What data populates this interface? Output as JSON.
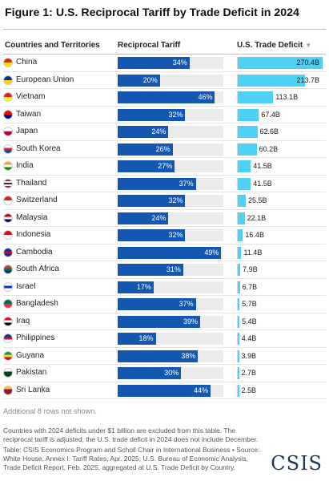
{
  "title": "Figure 1: U.S. Reciprocal Tariff by Trade Deficit in 2024",
  "columns": {
    "country": "Countries and Territories",
    "tariff": "Reciprocal Tariff",
    "deficit": "U.S. Trade Deficit",
    "sort_icon": "sort-down-icon"
  },
  "colors": {
    "tariff_bar": "#1357b0",
    "tariff_track": "#ebebeb",
    "deficit_bar": "#4fd0f5"
  },
  "chart_data": {
    "type": "table",
    "title": "Figure 1: U.S. Reciprocal Tariff by Trade Deficit in 2024",
    "columns": [
      "Countries and Territories",
      "Reciprocal Tariff",
      "U.S. Trade Deficit"
    ],
    "tariff_max_percent": 100,
    "rows": [
      {
        "country": "China",
        "tariff": 34,
        "tariff_label": "34%",
        "deficit": 270.4,
        "deficit_label": "270.4B",
        "flag_colors": [
          "#de2910",
          "#ffde00"
        ]
      },
      {
        "country": "European Union",
        "tariff": 20,
        "tariff_label": "20%",
        "deficit": 213.7,
        "deficit_label": "213.7B",
        "flag_colors": [
          "#003399",
          "#ffcc00"
        ]
      },
      {
        "country": "Vietnam",
        "tariff": 46,
        "tariff_label": "46%",
        "deficit": 113.1,
        "deficit_label": "113.1B",
        "flag_colors": [
          "#da251d",
          "#ffff00"
        ]
      },
      {
        "country": "Taiwan",
        "tariff": 32,
        "tariff_label": "32%",
        "deficit": 67.4,
        "deficit_label": "67.4B",
        "flag_colors": [
          "#fe0000",
          "#000095"
        ]
      },
      {
        "country": "Japan",
        "tariff": 24,
        "tariff_label": "24%",
        "deficit": 62.6,
        "deficit_label": "62.6B",
        "flag_colors": [
          "#ffffff",
          "#bc002d"
        ]
      },
      {
        "country": "South Korea",
        "tariff": 26,
        "tariff_label": "26%",
        "deficit": 60.2,
        "deficit_label": "60.2B",
        "flag_colors": [
          "#ffffff",
          "#cd2e3a",
          "#0047a0"
        ]
      },
      {
        "country": "India",
        "tariff": 27,
        "tariff_label": "27%",
        "deficit": 41.5,
        "deficit_label": "41.5B",
        "flag_colors": [
          "#ff9933",
          "#ffffff",
          "#138808"
        ]
      },
      {
        "country": "Thailand",
        "tariff": 37,
        "tariff_label": "37%",
        "deficit": 41.5,
        "deficit_label": "41.5B",
        "flag_colors": [
          "#a51931",
          "#f4f5f8",
          "#2d2a4a",
          "#f4f5f8",
          "#a51931"
        ]
      },
      {
        "country": "Switzerland",
        "tariff": 32,
        "tariff_label": "32%",
        "deficit": 25.5,
        "deficit_label": "25.5B",
        "flag_colors": [
          "#d52b1e",
          "#ffffff"
        ]
      },
      {
        "country": "Malaysia",
        "tariff": 24,
        "tariff_label": "24%",
        "deficit": 22.1,
        "deficit_label": "22.1B",
        "flag_colors": [
          "#cc0001",
          "#ffffff",
          "#010066"
        ]
      },
      {
        "country": "Indonesia",
        "tariff": 32,
        "tariff_label": "32%",
        "deficit": 16.4,
        "deficit_label": "16.4B",
        "flag_colors": [
          "#ce1126",
          "#ffffff"
        ]
      },
      {
        "country": "Cambodia",
        "tariff": 49,
        "tariff_label": "49%",
        "deficit": 11.4,
        "deficit_label": "11.4B",
        "flag_colors": [
          "#032ea1",
          "#e00025",
          "#032ea1"
        ]
      },
      {
        "country": "South Africa",
        "tariff": 31,
        "tariff_label": "31%",
        "deficit": 7.9,
        "deficit_label": "7.9B",
        "flag_colors": [
          "#de3831",
          "#007a4d",
          "#002395"
        ]
      },
      {
        "country": "Israel",
        "tariff": 17,
        "tariff_label": "17%",
        "deficit": 6.7,
        "deficit_label": "6.7B",
        "flag_colors": [
          "#ffffff",
          "#0038b8",
          "#ffffff"
        ]
      },
      {
        "country": "Bangladesh",
        "tariff": 37,
        "tariff_label": "37%",
        "deficit": 5.7,
        "deficit_label": "5.7B",
        "flag_colors": [
          "#006a4e",
          "#f42a41"
        ]
      },
      {
        "country": "Iraq",
        "tariff": 39,
        "tariff_label": "39%",
        "deficit": 5.4,
        "deficit_label": "5.4B",
        "flag_colors": [
          "#ce1126",
          "#ffffff",
          "#000000"
        ]
      },
      {
        "country": "Philippines",
        "tariff": 18,
        "tariff_label": "18%",
        "deficit": 4.4,
        "deficit_label": "4.4B",
        "flag_colors": [
          "#0038a8",
          "#ce1126",
          "#ffffff"
        ]
      },
      {
        "country": "Guyana",
        "tariff": 38,
        "tariff_label": "38%",
        "deficit": 3.9,
        "deficit_label": "3.9B",
        "flag_colors": [
          "#009e49",
          "#fcd116",
          "#ce1126"
        ]
      },
      {
        "country": "Pakistan",
        "tariff": 30,
        "tariff_label": "30%",
        "deficit": 2.7,
        "deficit_label": "2.7B",
        "flag_colors": [
          "#ffffff",
          "#01411c",
          "#01411c"
        ]
      },
      {
        "country": "Sri Lanka",
        "tariff": 44,
        "tariff_label": "44%",
        "deficit": 2.5,
        "deficit_label": "2.5B",
        "flag_colors": [
          "#ffbe29",
          "#8d153a",
          "#8d153a"
        ]
      }
    ]
  },
  "notes": {
    "hidden_rows": "Additional 8 rows not shown.",
    "footnote": "Countries with 2024 deficits under $1 billion are excluded from this table. The reciprocal tariff is adjusted; the U.S. trade deficit in 2024 does not include December.",
    "source": "Table: CSIS Economics Program and Scholl Chair in International Business • Source: White House, Annex I: Tariff Rates, Apr. 2025; U.S. Bureau of Economic Analysis, Trade Deficit Report, Feb. 2025, aggregated at U.S. Trade Deficit by Country."
  },
  "logo_text": "CSIS"
}
